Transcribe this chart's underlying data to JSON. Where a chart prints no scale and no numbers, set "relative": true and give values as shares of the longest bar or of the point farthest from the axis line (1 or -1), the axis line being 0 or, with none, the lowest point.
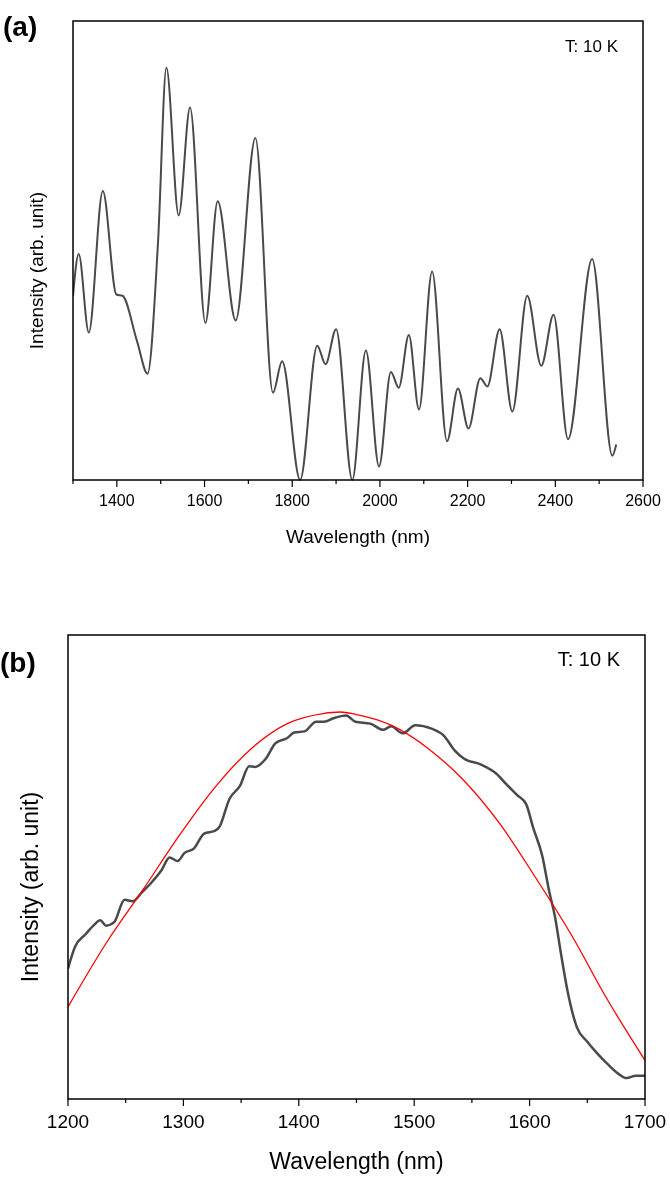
{
  "chart_data": [
    {
      "type": "line",
      "title": "(a)",
      "xlabel": "Wavelength (nm)",
      "ylabel": "Intensity (arb. unit)",
      "annotations": [
        "T: 10 K"
      ],
      "relative": true,
      "xlim": [
        1300,
        2600
      ],
      "xticks": [
        {
          "value": 1300,
          "label": null
        },
        1400,
        {
          "value": 1500,
          "label": null
        },
        1600,
        {
          "value": 1700,
          "label": null
        },
        1800,
        {
          "value": 1900,
          "label": null
        },
        2000,
        {
          "value": 2100,
          "label": null
        },
        2200,
        {
          "value": 2300,
          "label": null
        },
        2400,
        {
          "value": 2500,
          "label": null
        },
        2600
      ],
      "series": [
        {
          "color": "#4a4a4a",
          "x": [
            1300,
            1313,
            1336,
            1368,
            1399,
            1413,
            1446,
            1470,
            1494,
            1513,
            1541,
            1567,
            1602,
            1630,
            1671,
            1716,
            1756,
            1777,
            1818,
            1857,
            1876,
            1900,
            1937,
            1968,
            1998,
            2025,
            2043,
            2066,
            2089,
            2119,
            2153,
            2178,
            2202,
            2229,
            2245,
            2273,
            2302,
            2336,
            2368,
            2396,
            2429,
            2484,
            2530,
            2539
          ],
          "values": [
            0.446,
            0.548,
            0.358,
            0.701,
            0.45,
            0.447,
            0.337,
            0.258,
            0.579,
            1.0,
            0.642,
            0.904,
            0.381,
            0.676,
            0.387,
            0.83,
            0.212,
            0.288,
            0,
            0.326,
            0.281,
            0.366,
            0,
            0.314,
            0.033,
            0.262,
            0.224,
            0.352,
            0.171,
            0.506,
            0.094,
            0.222,
            0.125,
            0.247,
            0.227,
            0.366,
            0.166,
            0.447,
            0.277,
            0.401,
            0.099,
            0.536,
            0.059,
            0.086
          ]
        }
      ]
    },
    {
      "type": "line",
      "title": "(b)",
      "xlabel": "Wavelength (nm)",
      "ylabel": "Intensity (arb. unit)",
      "annotations": [
        "T: 10 K"
      ],
      "relative": true,
      "xlim": [
        1200,
        1700
      ],
      "xticks": [
        1200,
        {
          "value": 1250,
          "label": null
        },
        1300,
        {
          "value": 1350,
          "label": null
        },
        1400,
        {
          "value": 1450,
          "label": null
        },
        1500,
        {
          "value": 1550,
          "label": null
        },
        1600,
        {
          "value": 1650,
          "label": null
        },
        1700
      ],
      "series": [
        {
          "color": "#4a4a4a",
          "x": [
            1200,
            1206,
            1215,
            1222,
            1228,
            1233,
            1240,
            1249,
            1256,
            1264,
            1271,
            1281,
            1288,
            1295,
            1301,
            1309,
            1318,
            1327,
            1331,
            1340,
            1349,
            1357,
            1362,
            1371,
            1380,
            1390,
            1396,
            1405,
            1415,
            1422,
            1430,
            1441,
            1449,
            1462,
            1473,
            1480,
            1490,
            1501,
            1515,
            1526,
            1535,
            1543,
            1558,
            1571,
            1580,
            1589,
            1597,
            1603,
            1611,
            1617,
            1622,
            1627,
            1633,
            1641,
            1650,
            1658,
            1667,
            1677,
            1684,
            1692,
            1700
          ],
          "values": [
            0.337,
            0.393,
            0.425,
            0.448,
            0.462,
            0.448,
            0.457,
            0.515,
            0.511,
            0.534,
            0.555,
            0.591,
            0.624,
            0.615,
            0.636,
            0.647,
            0.686,
            0.693,
            0.702,
            0.776,
            0.809,
            0.86,
            0.858,
            0.878,
            0.92,
            0.933,
            0.947,
            0.95,
            0.975,
            0.975,
            0.984,
            0.991,
            0.975,
            0.97,
            0.954,
            0.963,
            0.945,
            0.966,
            0.957,
            0.938,
            0.901,
            0.88,
            0.864,
            0.841,
            0.813,
            0.786,
            0.762,
            0.702,
            0.628,
            0.536,
            0.471,
            0.379,
            0.277,
            0.185,
            0.148,
            0.12,
            0.092,
            0.065,
            0.054,
            0.06,
            0.06
          ]
        },
        {
          "color": "#ff0000",
          "x": [
            1200,
            1234,
            1265,
            1296,
            1327,
            1359,
            1390,
            1421,
            1436,
            1449,
            1480,
            1512,
            1543,
            1574,
            1605,
            1636,
            1667,
            1700
          ],
          "values": [
            0.238,
            0.407,
            0.541,
            0.679,
            0.804,
            0.906,
            0.97,
            0.996,
            1.0,
            0.994,
            0.966,
            0.906,
            0.823,
            0.712,
            0.573,
            0.425,
            0.259,
            0.1
          ]
        }
      ]
    }
  ]
}
